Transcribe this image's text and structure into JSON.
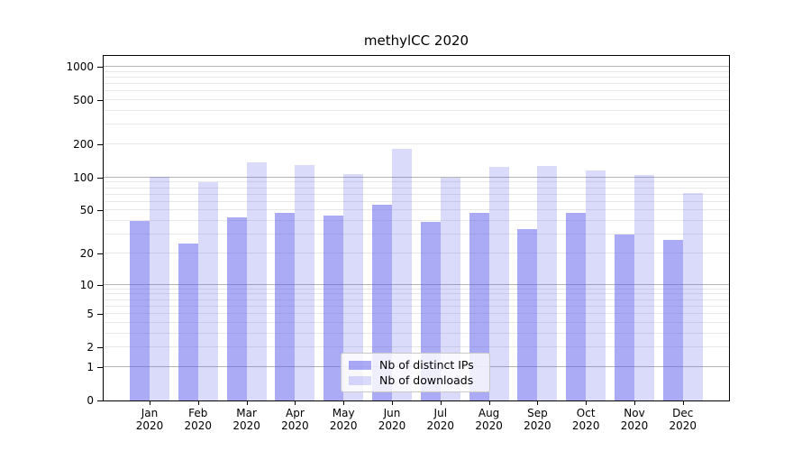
{
  "chart_data": {
    "type": "bar",
    "title": "methylCC 2020",
    "year_label": "2020",
    "categories": [
      "Jan",
      "Feb",
      "Mar",
      "Apr",
      "May",
      "Jun",
      "Jul",
      "Aug",
      "Sep",
      "Oct",
      "Nov",
      "Dec"
    ],
    "series": [
      {
        "name": "Nb of distinct IPs",
        "color": "rgba(85,85,235,0.50)",
        "values": [
          40,
          25,
          43,
          48,
          45,
          57,
          39,
          48,
          34,
          48,
          30,
          27
        ]
      },
      {
        "name": "Nb of downloads",
        "color": "rgba(85,85,235,0.22)",
        "values": [
          101,
          90,
          138,
          130,
          108,
          181,
          100,
          126,
          128,
          115,
          105,
          73
        ]
      }
    ],
    "yscale": "log1p",
    "yticks": [
      0,
      1,
      2,
      5,
      10,
      20,
      50,
      100,
      200,
      500,
      1000
    ],
    "ylim": [
      0,
      1250
    ],
    "grid": true,
    "legend_position": "lower center",
    "colors": {
      "axis": "#000000",
      "major_grid": "#b4b4b4",
      "minor_grid": "#e8e8e8",
      "background": "#ffffff"
    }
  }
}
